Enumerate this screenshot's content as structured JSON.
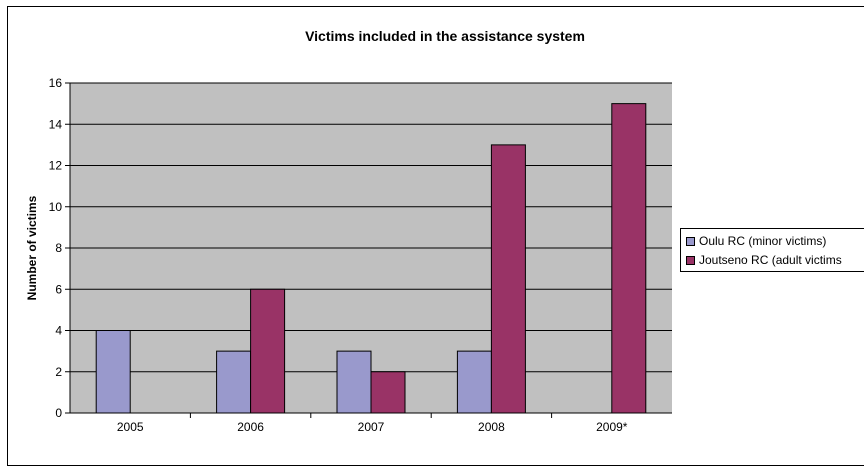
{
  "chart_data": {
    "type": "bar",
    "title": "Victims included in the assistance system",
    "xlabel": "",
    "ylabel": "Number of victims",
    "categories": [
      "2005",
      "2006",
      "2007",
      "2008",
      "2009*"
    ],
    "series": [
      {
        "name": "Oulu RC (minor victims)",
        "values": [
          4,
          3,
          3,
          3,
          0
        ],
        "color": "#9999cc"
      },
      {
        "name": "Joutseno RC (adult victims",
        "values": [
          0,
          6,
          2,
          13,
          15
        ],
        "color": "#993366"
      }
    ],
    "ylim": [
      0,
      16
    ],
    "yticks": [
      0,
      2,
      4,
      6,
      8,
      10,
      12,
      14,
      16
    ],
    "grid": true,
    "plot_background": "#c0c0c0",
    "legend": "right"
  }
}
